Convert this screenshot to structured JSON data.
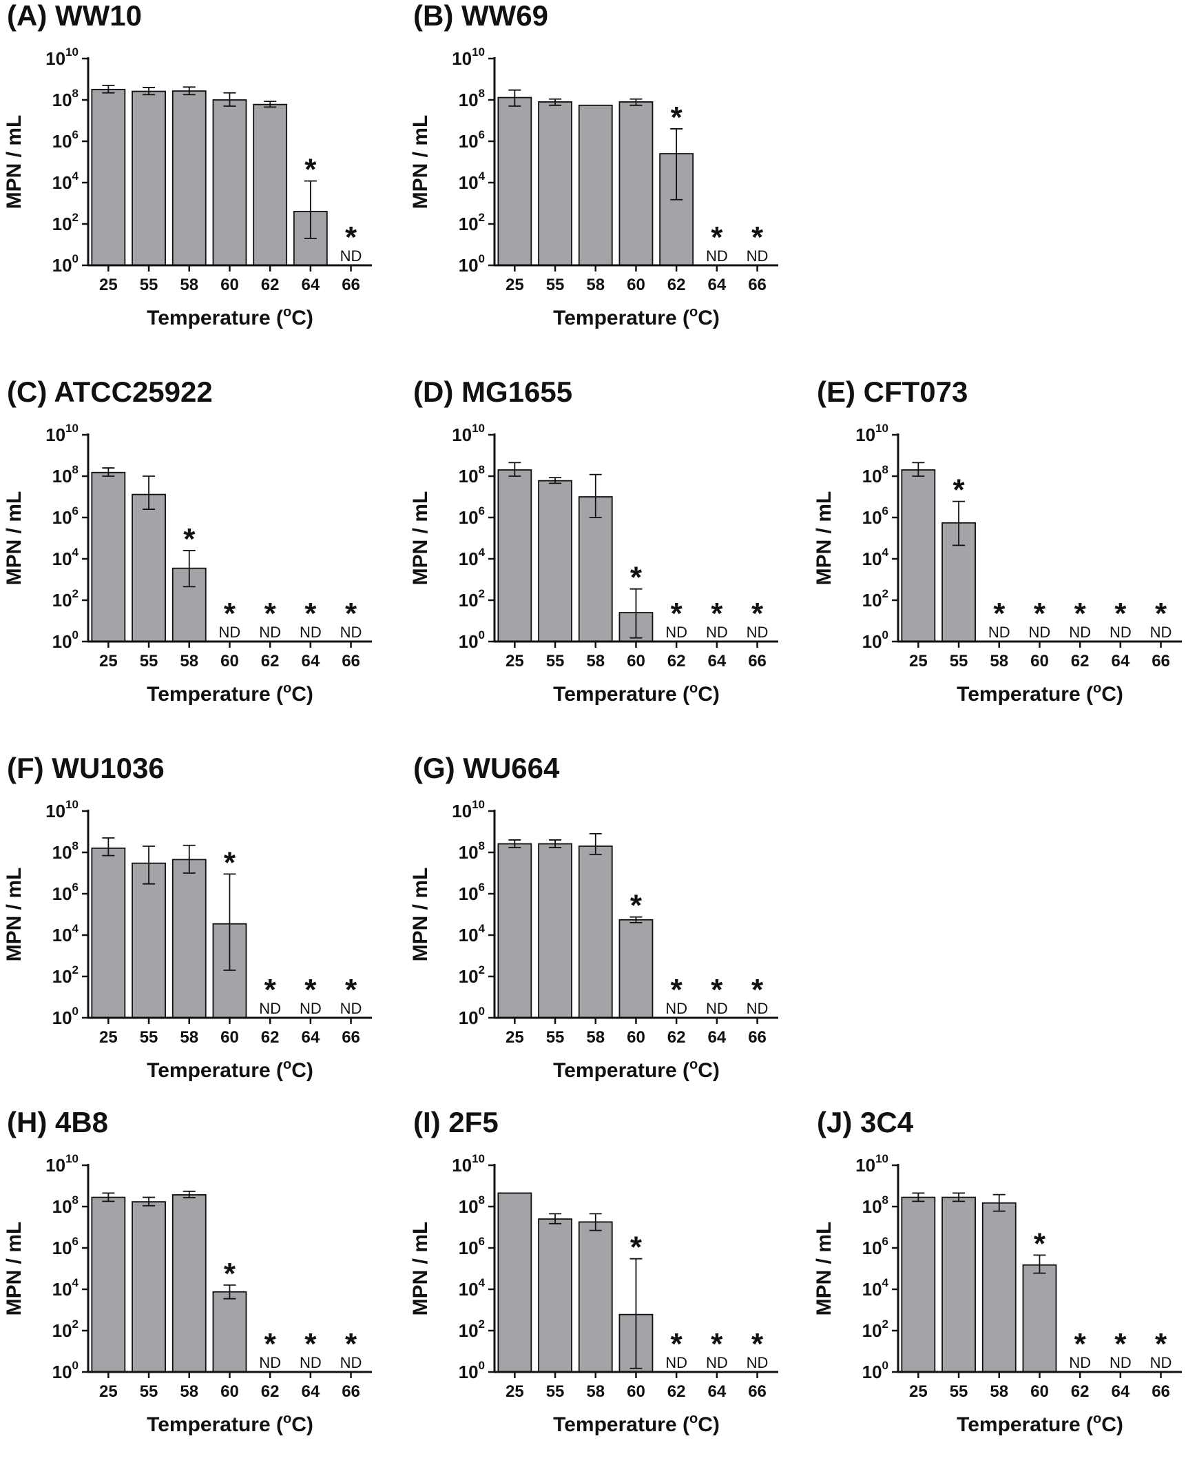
{
  "bar_color": "#a3a3a8",
  "axis_color": "#111111",
  "chart_data": [
    {
      "panel": "A",
      "title": "(A) WW10",
      "type": "bar",
      "xlabel": "Temperature (°C)",
      "xlabel_pre": "Temperature (",
      "xlabel_sup": "o",
      "xlabel_post": "C)",
      "ylabel": "MPN / mL",
      "yscale": "log10",
      "ylim": [
        1,
        10000000000.0
      ],
      "yticks": [
        {
          "base": "10",
          "exp": "0"
        },
        {
          "base": "10",
          "exp": "2"
        },
        {
          "base": "10",
          "exp": "4"
        },
        {
          "base": "10",
          "exp": "6"
        },
        {
          "base": "10",
          "exp": "8"
        },
        {
          "base": "10",
          "exp": "10"
        }
      ],
      "categories": [
        "25",
        "55",
        "58",
        "60",
        "62",
        "64",
        "66"
      ],
      "values": [
        320000000.0,
        260000000.0,
        270000000.0,
        100000000.0,
        60000000.0,
        400.0,
        null
      ],
      "err_low": [
        220000000.0,
        180000000.0,
        180000000.0,
        50000000.0,
        45000000.0,
        20.0,
        null
      ],
      "err_high": [
        500000000.0,
        400000000.0,
        420000000.0,
        220000000.0,
        85000000.0,
        12000.0,
        null
      ],
      "significant": [
        false,
        false,
        false,
        false,
        false,
        true,
        true
      ],
      "nd": [
        false,
        false,
        false,
        false,
        false,
        false,
        true
      ],
      "star_label": "*",
      "nd_label": "ND"
    },
    {
      "panel": "B",
      "title": "(B) WW69",
      "type": "bar",
      "xlabel": "Temperature (°C)",
      "xlabel_pre": "Temperature (",
      "xlabel_sup": "o",
      "xlabel_post": "C)",
      "ylabel": "MPN / mL",
      "yscale": "log10",
      "ylim": [
        1,
        10000000000.0
      ],
      "yticks": [
        {
          "base": "10",
          "exp": "0"
        },
        {
          "base": "10",
          "exp": "2"
        },
        {
          "base": "10",
          "exp": "4"
        },
        {
          "base": "10",
          "exp": "6"
        },
        {
          "base": "10",
          "exp": "8"
        },
        {
          "base": "10",
          "exp": "10"
        }
      ],
      "categories": [
        "25",
        "55",
        "58",
        "60",
        "62",
        "64",
        "66"
      ],
      "values": [
        130000000.0,
        80000000.0,
        55000000.0,
        80000000.0,
        250000.0,
        null,
        null
      ],
      "err_low": [
        50000000.0,
        55000000.0,
        null,
        55000000.0,
        1500.0,
        null,
        null
      ],
      "err_high": [
        300000000.0,
        110000000.0,
        null,
        110000000.0,
        4000000.0,
        null,
        null
      ],
      "significant": [
        false,
        false,
        false,
        false,
        true,
        true,
        true
      ],
      "nd": [
        false,
        false,
        false,
        false,
        false,
        true,
        true
      ],
      "star_label": "*",
      "nd_label": "ND"
    },
    {
      "panel": "C",
      "title": "(C) ATCC25922",
      "type": "bar",
      "xlabel": "Temperature (°C)",
      "xlabel_pre": "Temperature (",
      "xlabel_sup": "o",
      "xlabel_post": "C)",
      "ylabel": "MPN / mL",
      "yscale": "log10",
      "ylim": [
        1,
        10000000000.0
      ],
      "yticks": [
        {
          "base": "10",
          "exp": "0"
        },
        {
          "base": "10",
          "exp": "2"
        },
        {
          "base": "10",
          "exp": "4"
        },
        {
          "base": "10",
          "exp": "6"
        },
        {
          "base": "10",
          "exp": "8"
        },
        {
          "base": "10",
          "exp": "10"
        }
      ],
      "categories": [
        "25",
        "55",
        "58",
        "60",
        "62",
        "64",
        "66"
      ],
      "values": [
        150000000.0,
        13000000.0,
        3500.0,
        null,
        null,
        null,
        null
      ],
      "err_low": [
        100000000.0,
        2500000.0,
        450.0,
        null,
        null,
        null,
        null
      ],
      "err_high": [
        250000000.0,
        100000000.0,
        25000.0,
        null,
        null,
        null,
        null
      ],
      "significant": [
        false,
        false,
        true,
        true,
        true,
        true,
        true
      ],
      "nd": [
        false,
        false,
        false,
        true,
        true,
        true,
        true
      ],
      "star_label": "*",
      "nd_label": "ND"
    },
    {
      "panel": "D",
      "title": "(D) MG1655",
      "type": "bar",
      "xlabel": "Temperature (°C)",
      "xlabel_pre": "Temperature (",
      "xlabel_sup": "o",
      "xlabel_post": "C)",
      "ylabel": "MPN / mL",
      "yscale": "log10",
      "ylim": [
        1,
        10000000000.0
      ],
      "yticks": [
        {
          "base": "10",
          "exp": "0"
        },
        {
          "base": "10",
          "exp": "2"
        },
        {
          "base": "10",
          "exp": "4"
        },
        {
          "base": "10",
          "exp": "6"
        },
        {
          "base": "10",
          "exp": "8"
        },
        {
          "base": "10",
          "exp": "10"
        }
      ],
      "categories": [
        "25",
        "55",
        "58",
        "60",
        "62",
        "64",
        "66"
      ],
      "values": [
        200000000.0,
        60000000.0,
        10000000.0,
        25.0,
        null,
        null,
        null
      ],
      "err_low": [
        100000000.0,
        45000000.0,
        1000000.0,
        1.5,
        null,
        null,
        null
      ],
      "err_high": [
        450000000.0,
        85000000.0,
        120000000.0,
        350.0,
        null,
        null,
        null
      ],
      "significant": [
        false,
        false,
        false,
        true,
        true,
        true,
        true
      ],
      "nd": [
        false,
        false,
        false,
        false,
        true,
        true,
        true
      ],
      "star_label": "*",
      "nd_label": "ND"
    },
    {
      "panel": "E",
      "title": "(E) CFT073",
      "type": "bar",
      "xlabel": "Temperature (°C)",
      "xlabel_pre": "Temperature (",
      "xlabel_sup": "o",
      "xlabel_post": "C)",
      "ylabel": "MPN / mL",
      "yscale": "log10",
      "ylim": [
        1,
        10000000000.0
      ],
      "yticks": [
        {
          "base": "10",
          "exp": "0"
        },
        {
          "base": "10",
          "exp": "2"
        },
        {
          "base": "10",
          "exp": "4"
        },
        {
          "base": "10",
          "exp": "6"
        },
        {
          "base": "10",
          "exp": "8"
        },
        {
          "base": "10",
          "exp": "10"
        }
      ],
      "categories": [
        "25",
        "55",
        "58",
        "60",
        "62",
        "64",
        "66"
      ],
      "values": [
        200000000.0,
        550000.0,
        null,
        null,
        null,
        null,
        null
      ],
      "err_low": [
        100000000.0,
        45000.0,
        null,
        null,
        null,
        null,
        null
      ],
      "err_high": [
        450000000.0,
        6000000.0,
        null,
        null,
        null,
        null,
        null
      ],
      "significant": [
        false,
        true,
        true,
        true,
        true,
        true,
        true
      ],
      "nd": [
        false,
        false,
        true,
        true,
        true,
        true,
        true
      ],
      "star_label": "*",
      "nd_label": "ND"
    },
    {
      "panel": "F",
      "title": "(F) WU1036",
      "type": "bar",
      "xlabel": "Temperature (°C)",
      "xlabel_pre": "Temperature (",
      "xlabel_sup": "o",
      "xlabel_post": "C)",
      "ylabel": "MPN / mL",
      "yscale": "log10",
      "ylim": [
        1,
        10000000000.0
      ],
      "yticks": [
        {
          "base": "10",
          "exp": "0"
        },
        {
          "base": "10",
          "exp": "2"
        },
        {
          "base": "10",
          "exp": "4"
        },
        {
          "base": "10",
          "exp": "6"
        },
        {
          "base": "10",
          "exp": "8"
        },
        {
          "base": "10",
          "exp": "10"
        }
      ],
      "categories": [
        "25",
        "55",
        "58",
        "60",
        "62",
        "64",
        "66"
      ],
      "values": [
        160000000.0,
        30000000.0,
        45000000.0,
        35000.0,
        null,
        null,
        null
      ],
      "err_low": [
        70000000.0,
        3000000.0,
        10000000.0,
        200.0,
        null,
        null,
        null
      ],
      "err_high": [
        500000000.0,
        200000000.0,
        220000000.0,
        9000000.0,
        null,
        null,
        null
      ],
      "significant": [
        false,
        false,
        false,
        true,
        true,
        true,
        true
      ],
      "nd": [
        false,
        false,
        false,
        false,
        true,
        true,
        true
      ],
      "star_label": "*",
      "nd_label": "ND"
    },
    {
      "panel": "G",
      "title": "(G) WU664",
      "type": "bar",
      "xlabel": "Temperature (°C)",
      "xlabel_pre": "Temperature (",
      "xlabel_sup": "o",
      "xlabel_post": "C)",
      "ylabel": "MPN / mL",
      "yscale": "log10",
      "ylim": [
        1,
        10000000000.0
      ],
      "yticks": [
        {
          "base": "10",
          "exp": "0"
        },
        {
          "base": "10",
          "exp": "2"
        },
        {
          "base": "10",
          "exp": "4"
        },
        {
          "base": "10",
          "exp": "6"
        },
        {
          "base": "10",
          "exp": "8"
        },
        {
          "base": "10",
          "exp": "10"
        }
      ],
      "categories": [
        "25",
        "55",
        "58",
        "60",
        "62",
        "64",
        "66"
      ],
      "values": [
        260000000.0,
        260000000.0,
        200000000.0,
        55000.0,
        null,
        null,
        null
      ],
      "err_low": [
        170000000.0,
        170000000.0,
        80000000.0,
        40000.0,
        null,
        null,
        null
      ],
      "err_high": [
        400000000.0,
        400000000.0,
        800000000.0,
        75000.0,
        null,
        null,
        null
      ],
      "significant": [
        false,
        false,
        false,
        true,
        true,
        true,
        true
      ],
      "nd": [
        false,
        false,
        false,
        false,
        true,
        true,
        true
      ],
      "star_label": "*",
      "nd_label": "ND"
    },
    {
      "panel": "H",
      "title": "(H) 4B8",
      "type": "bar",
      "xlabel": "Temperature (°C)",
      "xlabel_pre": "Temperature (",
      "xlabel_sup": "o",
      "xlabel_post": "C)",
      "ylabel": "MPN / mL",
      "yscale": "log10",
      "ylim": [
        1,
        10000000000.0
      ],
      "yticks": [
        {
          "base": "10",
          "exp": "0"
        },
        {
          "base": "10",
          "exp": "2"
        },
        {
          "base": "10",
          "exp": "4"
        },
        {
          "base": "10",
          "exp": "6"
        },
        {
          "base": "10",
          "exp": "8"
        },
        {
          "base": "10",
          "exp": "10"
        }
      ],
      "categories": [
        "25",
        "55",
        "58",
        "60",
        "62",
        "64",
        "66"
      ],
      "values": [
        280000000.0,
        170000000.0,
        370000000.0,
        7500.0,
        null,
        null,
        null
      ],
      "err_low": [
        180000000.0,
        110000000.0,
        270000000.0,
        3500.0,
        null,
        null,
        null
      ],
      "err_high": [
        450000000.0,
        280000000.0,
        550000000.0,
        16000.0,
        null,
        null,
        null
      ],
      "significant": [
        false,
        false,
        false,
        true,
        true,
        true,
        true
      ],
      "nd": [
        false,
        false,
        false,
        false,
        true,
        true,
        true
      ],
      "star_label": "*",
      "nd_label": "ND"
    },
    {
      "panel": "I",
      "title": "(I) 2F5",
      "type": "bar",
      "xlabel": "Temperature (°C)",
      "xlabel_pre": "Temperature (",
      "xlabel_sup": "o",
      "xlabel_post": "C)",
      "ylabel": "MPN / mL",
      "yscale": "log10",
      "ylim": [
        1,
        10000000000.0
      ],
      "yticks": [
        {
          "base": "10",
          "exp": "0"
        },
        {
          "base": "10",
          "exp": "2"
        },
        {
          "base": "10",
          "exp": "4"
        },
        {
          "base": "10",
          "exp": "6"
        },
        {
          "base": "10",
          "exp": "8"
        },
        {
          "base": "10",
          "exp": "10"
        }
      ],
      "categories": [
        "25",
        "55",
        "58",
        "60",
        "62",
        "64",
        "66"
      ],
      "values": [
        450000000.0,
        25000000.0,
        18000000.0,
        600.0,
        null,
        null,
        null
      ],
      "err_low": [
        null,
        15000000.0,
        7000000.0,
        1.5,
        null,
        null,
        null
      ],
      "err_high": [
        null,
        45000000.0,
        45000000.0,
        300000.0,
        null,
        null,
        null
      ],
      "significant": [
        false,
        false,
        false,
        true,
        true,
        true,
        true
      ],
      "nd": [
        false,
        false,
        false,
        false,
        true,
        true,
        true
      ],
      "star_label": "*",
      "nd_label": "ND"
    },
    {
      "panel": "J",
      "title": "(J) 3C4",
      "type": "bar",
      "xlabel": "Temperature (°C)",
      "xlabel_pre": "Temperature (",
      "xlabel_sup": "o",
      "xlabel_post": "C)",
      "ylabel": "MPN / mL",
      "yscale": "log10",
      "ylim": [
        1,
        10000000000.0
      ],
      "yticks": [
        {
          "base": "10",
          "exp": "0"
        },
        {
          "base": "10",
          "exp": "2"
        },
        {
          "base": "10",
          "exp": "4"
        },
        {
          "base": "10",
          "exp": "6"
        },
        {
          "base": "10",
          "exp": "8"
        },
        {
          "base": "10",
          "exp": "10"
        }
      ],
      "categories": [
        "25",
        "55",
        "58",
        "60",
        "62",
        "64",
        "66"
      ],
      "values": [
        280000000.0,
        280000000.0,
        150000000.0,
        150000.0,
        null,
        null,
        null
      ],
      "err_low": [
        180000000.0,
        180000000.0,
        60000000.0,
        60000.0,
        null,
        null,
        null
      ],
      "err_high": [
        450000000.0,
        450000000.0,
        380000000.0,
        450000.0,
        null,
        null,
        null
      ],
      "significant": [
        false,
        false,
        false,
        true,
        true,
        true,
        true
      ],
      "nd": [
        false,
        false,
        false,
        false,
        true,
        true,
        true
      ],
      "star_label": "*",
      "nd_label": "ND"
    }
  ]
}
